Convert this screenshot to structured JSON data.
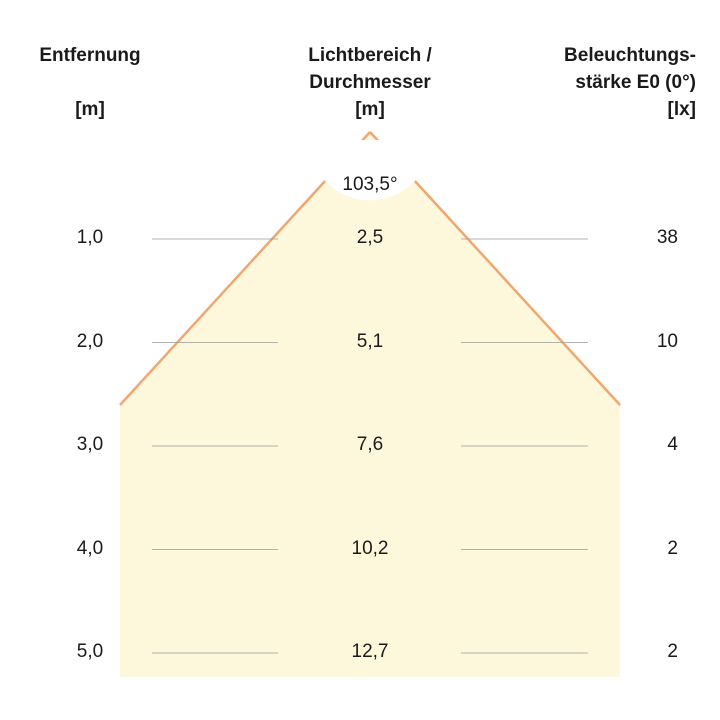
{
  "headers": {
    "distance": {
      "line1": "Entfernung",
      "unit": "[m]"
    },
    "diameter": {
      "line1": "Lichtbereich /",
      "line2": "Durchmesser",
      "unit": "[m]"
    },
    "illuminance": {
      "line1": "Beleuchtungs-",
      "line2": "stärke E0 (0°)",
      "unit": "[lx]"
    }
  },
  "beam_angle": "103,5°",
  "rows": [
    {
      "distance": "1,0",
      "diameter": "2,5",
      "lux": "38"
    },
    {
      "distance": "2,0",
      "diameter": "5,1",
      "lux": "10"
    },
    {
      "distance": "3,0",
      "diameter": "7,6",
      "lux": "4"
    },
    {
      "distance": "4,0",
      "diameter": "10,2",
      "lux": "2"
    },
    {
      "distance": "5,0",
      "diameter": "12,7",
      "lux": "2"
    }
  ],
  "colors": {
    "fill": "#fdf8dc",
    "edge": "#f2a66f",
    "rule": "#9a9a9a",
    "text": "#1a1a1a"
  }
}
